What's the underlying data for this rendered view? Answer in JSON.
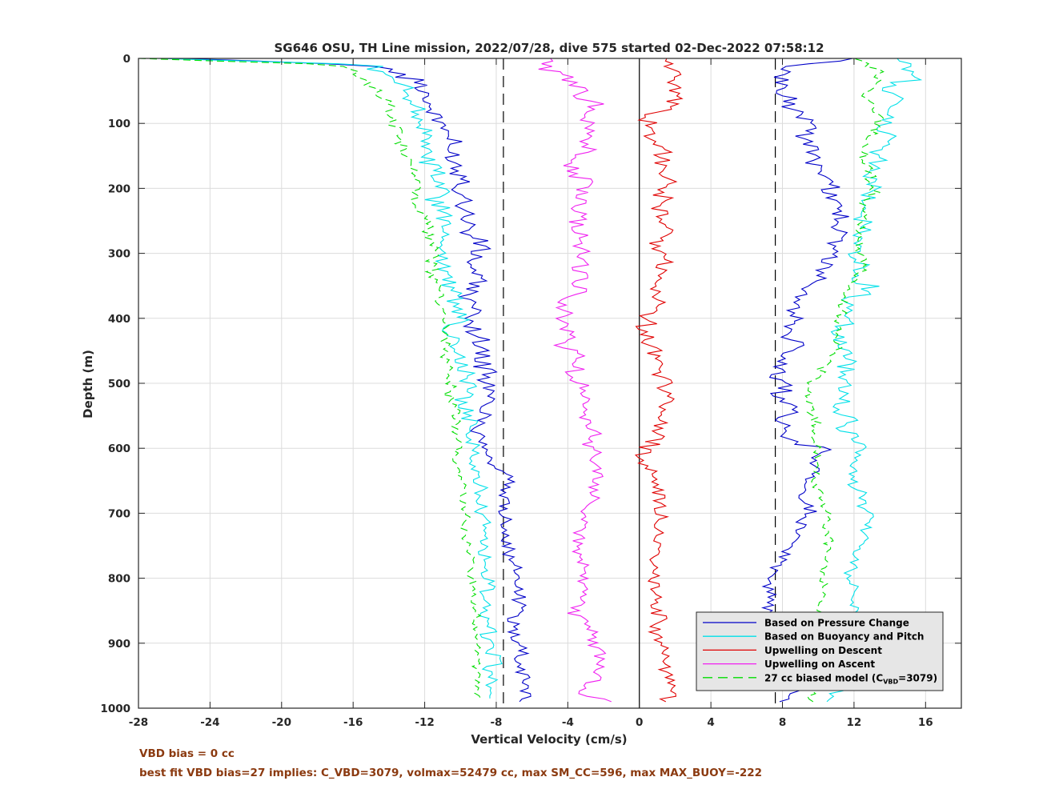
{
  "chart_data": {
    "type": "line",
    "title": "SG646 OSU, TH Line mission, 2022/07/28, dive 575 started 02-Dec-2022 07:58:12",
    "xlabel": "Vertical Velocity (cm/s)",
    "ylabel": "Depth (m)",
    "xlim": [
      -28,
      18
    ],
    "ylim": [
      0,
      1000
    ],
    "y_reversed": true,
    "grid": true,
    "x_ticks": [
      -28,
      -24,
      -20,
      -16,
      -12,
      -8,
      -4,
      0,
      4,
      8,
      12,
      16
    ],
    "y_ticks": [
      0,
      100,
      200,
      300,
      400,
      500,
      600,
      700,
      800,
      900,
      1000
    ],
    "vertical_lines": [
      {
        "x": -7.6,
        "style": "dashed",
        "color": "#000000"
      },
      {
        "x": 0,
        "style": "solid",
        "color": "#000000"
      },
      {
        "x": 7.6,
        "style": "dashed",
        "color": "#000000"
      }
    ],
    "legend": {
      "position": "bottom-right",
      "entries": [
        {
          "label": "Based on Pressure Change",
          "color": "#0000c8",
          "style": "solid"
        },
        {
          "label": "Based on Buoyancy and Pitch",
          "color": "#00e0e8",
          "style": "solid"
        },
        {
          "label": "Upwelling on Descent",
          "color": "#e00000",
          "style": "solid"
        },
        {
          "label": "Upwelling on Ascent",
          "color": "#f020f0",
          "style": "solid"
        },
        {
          "label_main": "27 cc biased model (C",
          "label_sub": "VBD",
          "label_tail": "=3079)",
          "color": "#00dd00",
          "style": "dashed"
        }
      ]
    },
    "series": [
      {
        "name": "Based on Pressure Change",
        "color": "#0000c8",
        "style": "solid",
        "descent": {
          "depth": [
            0,
            10,
            20,
            40,
            60,
            80,
            100,
            125,
            150,
            175,
            200,
            250,
            300,
            350,
            400,
            450,
            500,
            550,
            590,
            600,
            650,
            700,
            750,
            800,
            850,
            900,
            950,
            975,
            990
          ],
          "v": [
            -26,
            -15,
            -13.5,
            -12.5,
            -11.8,
            -11.3,
            -11.2,
            -10.7,
            -10.1,
            -10.0,
            -9.8,
            -9.6,
            -9.1,
            -9.3,
            -9.2,
            -9.0,
            -8.5,
            -8.6,
            -8.9,
            -8.6,
            -7.5,
            -7.4,
            -7.4,
            -6.8,
            -6.9,
            -6.7,
            -6.4,
            -6.4,
            -6.5
          ]
        },
        "ascent": {
          "depth": [
            990,
            975,
            950,
            900,
            850,
            800,
            750,
            700,
            650,
            600,
            590,
            550,
            500,
            450,
            400,
            350,
            300,
            250,
            200,
            150,
            100,
            60,
            30,
            10,
            0
          ],
          "v": [
            8.2,
            8.7,
            8.8,
            8.4,
            7.5,
            7.2,
            8.5,
            9.3,
            9.5,
            10.5,
            8.7,
            8.3,
            7.8,
            8.3,
            8.6,
            9.5,
            10.6,
            11.5,
            10.5,
            9.7,
            9.3,
            8.3,
            7.5,
            9.0,
            12.5
          ]
        }
      },
      {
        "name": "Based on Buoyancy and Pitch",
        "color": "#00e0e8",
        "style": "solid",
        "descent": {
          "depth": [
            0,
            10,
            30,
            50,
            70,
            100,
            150,
            200,
            250,
            300,
            350,
            400,
            450,
            500,
            550,
            600,
            650,
            700,
            750,
            800,
            850,
            900,
            950,
            985
          ],
          "v": [
            -27,
            -15,
            -14.2,
            -13.2,
            -12.6,
            -12.3,
            -11.8,
            -11.3,
            -11.0,
            -10.8,
            -10.6,
            -10.4,
            -10.1,
            -9.8,
            -9.6,
            -9.2,
            -9.0,
            -8.9,
            -8.7,
            -8.6,
            -8.5,
            -8.3,
            -8.2,
            -8.1
          ]
        },
        "ascent": {
          "depth": [
            990,
            950,
            900,
            850,
            800,
            750,
            700,
            650,
            600,
            550,
            500,
            450,
            400,
            350,
            300,
            250,
            200,
            150,
            100,
            50,
            20,
            0
          ],
          "v": [
            10.6,
            12.3,
            12.2,
            12.0,
            11.8,
            12.5,
            12.8,
            11.8,
            12.5,
            11.2,
            11.3,
            11.5,
            11.2,
            12.8,
            11.8,
            12.6,
            12.8,
            13.3,
            13.9,
            14.2,
            15.5,
            14.8
          ]
        }
      },
      {
        "name": "Upwelling on Descent",
        "color": "#e00000",
        "style": "solid",
        "descent": {
          "depth": [
            0,
            20,
            40,
            60,
            80,
            100,
            120,
            150,
            200,
            250,
            300,
            350,
            400,
            450,
            500,
            550,
            600,
            650,
            700,
            750,
            800,
            850,
            900,
            950,
            975,
            990
          ],
          "v": [
            1.5,
            1.7,
            1.4,
            2.2,
            1.3,
            0.4,
            0.6,
            1.5,
            1.3,
            1.2,
            1.4,
            1.1,
            0.4,
            0.6,
            1.5,
            1.2,
            0.3,
            0.6,
            1.2,
            0.9,
            0.8,
            0.9,
            1.2,
            1.6,
            2.0,
            1.5
          ]
        }
      },
      {
        "name": "Upwelling on Ascent",
        "color": "#f020f0",
        "style": "solid",
        "ascent": {
          "depth": [
            990,
            975,
            950,
            900,
            850,
            800,
            750,
            700,
            650,
            600,
            550,
            500,
            450,
            400,
            350,
            300,
            250,
            200,
            150,
            120,
            100,
            70,
            40,
            20,
            10,
            0
          ],
          "v": [
            -1.5,
            -3.5,
            -2.2,
            -2.6,
            -3.5,
            -3.0,
            -3.5,
            -3.0,
            -2.4,
            -2.5,
            -3.1,
            -3.2,
            -4.0,
            -4.2,
            -3.6,
            -3.0,
            -3.6,
            -3.2,
            -3.6,
            -2.5,
            -3.0,
            -2.8,
            -3.8,
            -5.0,
            -4.8,
            -4.8
          ]
        }
      },
      {
        "name": "27 cc biased model",
        "color": "#00dd00",
        "style": "dashed",
        "descent": {
          "depth": [
            0,
            10,
            30,
            50,
            100,
            150,
            200,
            250,
            300,
            350,
            400,
            450,
            500,
            550,
            600,
            650,
            700,
            750,
            800,
            850,
            900,
            950,
            985
          ],
          "v": [
            -28,
            -16.5,
            -15.5,
            -14.5,
            -13.8,
            -13.0,
            -12.4,
            -12.0,
            -11.6,
            -11.3,
            -11.0,
            -10.8,
            -10.6,
            -10.4,
            -10.2,
            -10.0,
            -9.8,
            -9.6,
            -9.4,
            -9.2,
            -9.1,
            -9.0,
            -8.9
          ]
        },
        "ascent": {
          "depth": [
            990,
            950,
            900,
            850,
            800,
            750,
            700,
            650,
            600,
            550,
            500,
            450,
            400,
            350,
            300,
            250,
            200,
            150,
            100,
            50,
            20,
            0
          ],
          "v": [
            9.5,
            10.3,
            10.4,
            10.2,
            10.2,
            10.6,
            10.4,
            9.8,
            10.0,
            9.5,
            9.6,
            11.0,
            11.0,
            12.0,
            12.4,
            12.5,
            13.0,
            12.6,
            13.2,
            12.6,
            13.5,
            12.0
          ]
        }
      }
    ]
  },
  "footnotes": {
    "line1": "VBD bias = 0 cc",
    "line2": "best fit VBD bias=27 implies: C_VBD=3079, volmax=52479 cc, max SM_CC=596, max MAX_BUOY=-222"
  }
}
